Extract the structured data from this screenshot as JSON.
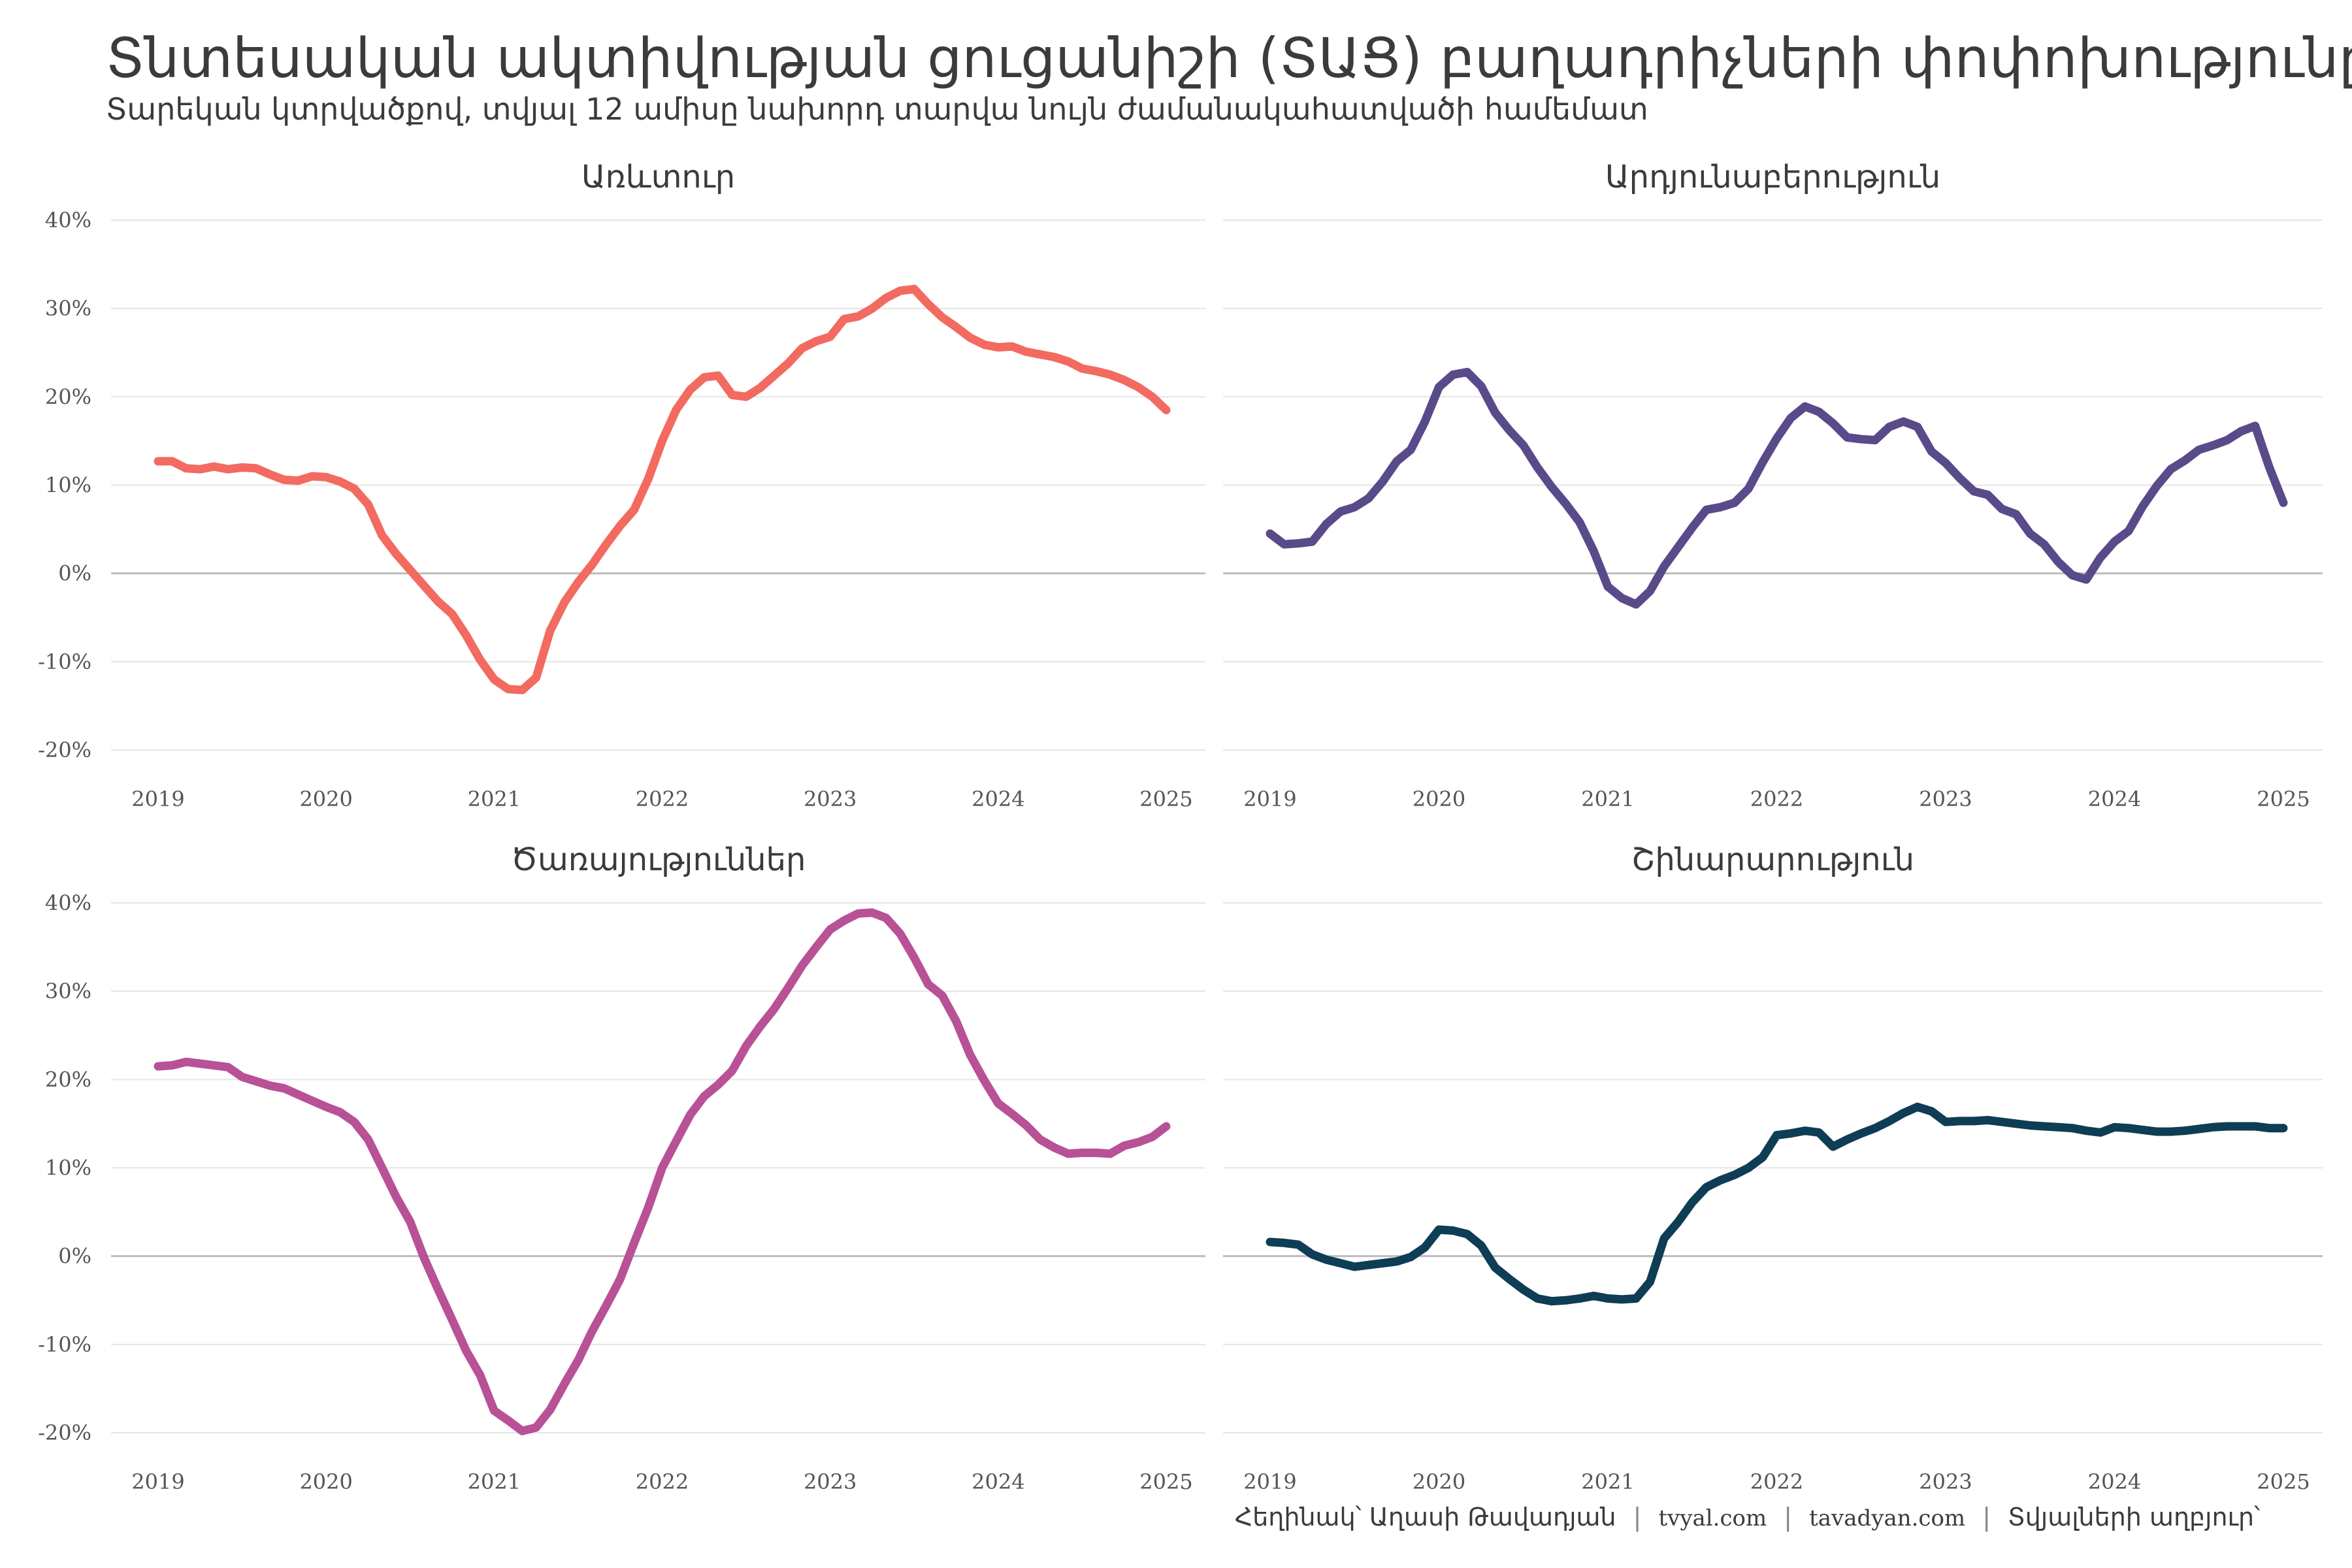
{
  "title": "Տնտեսական ակտիվության ցուցանիշի (ՏԱՑ) բաղադրիչների փոփոխությունը",
  "subtitle": "Տարեկան կտրվածքով, տվյալ 12 ամիսը նախորդ տարվա նույն ժամանակահատվածի համեմատ",
  "caption": {
    "author": "Հեղինակ՝ Աղասի Թավադյան",
    "site1": "tvyal.com",
    "site2": "tavadyan.com",
    "source": "Տվյալների աղբյուր՝"
  },
  "chart_data": [
    {
      "type": "line",
      "title": "Առևտուր",
      "color": "#f26a60",
      "ylim": [
        -20,
        40
      ],
      "yticks": [
        -20,
        -10,
        0,
        10,
        20,
        30,
        40
      ],
      "ytick_labels": [
        "-20%",
        "-10%",
        "0%",
        "10%",
        "20%",
        "30%",
        "40%"
      ],
      "xlim": [
        2019,
        2025
      ],
      "xticks": [
        2019,
        2020,
        2021,
        2022,
        2023,
        2024,
        2025
      ],
      "xtick_labels": [
        "2019",
        "2020",
        "2021",
        "2022",
        "2023",
        "2024",
        "2025"
      ],
      "x": [
        2019.0,
        2019.083,
        2019.167,
        2019.25,
        2019.333,
        2019.417,
        2019.5,
        2019.583,
        2019.667,
        2019.75,
        2019.833,
        2019.917,
        2020.0,
        2020.083,
        2020.167,
        2020.25,
        2020.333,
        2020.417,
        2020.5,
        2020.583,
        2020.667,
        2020.75,
        2020.833,
        2020.917,
        2021.0,
        2021.083,
        2021.167,
        2021.25,
        2021.333,
        2021.417,
        2021.5,
        2021.583,
        2021.667,
        2021.75,
        2021.833,
        2021.917,
        2022.0,
        2022.083,
        2022.167,
        2022.25,
        2022.333,
        2022.417,
        2022.5,
        2022.583,
        2022.667,
        2022.75,
        2022.833,
        2022.917,
        2023.0,
        2023.083,
        2023.167,
        2023.25,
        2023.333,
        2023.417,
        2023.5,
        2023.583,
        2023.667,
        2023.75,
        2023.833,
        2023.917,
        2024.0,
        2024.083,
        2024.167,
        2024.25,
        2024.333,
        2024.417,
        2024.5,
        2024.583,
        2024.667,
        2024.75,
        2024.833,
        2024.917,
        2025.0
      ],
      "y": [
        12.7,
        12.7,
        11.9,
        11.8,
        12.1,
        11.8,
        12.0,
        11.9,
        11.2,
        10.6,
        10.5,
        11.0,
        10.9,
        10.4,
        9.6,
        7.8,
        4.3,
        2.2,
        0.4,
        -1.4,
        -3.2,
        -4.6,
        -7.0,
        -9.8,
        -12.0,
        -13.1,
        -13.2,
        -11.8,
        -6.5,
        -3.3,
        -1.0,
        1.0,
        3.3,
        5.4,
        7.2,
        10.7,
        15.0,
        18.5,
        20.8,
        22.2,
        22.4,
        20.2,
        20.0,
        21.0,
        22.4,
        23.8,
        25.5,
        26.3,
        26.8,
        28.8,
        29.1,
        30.0,
        31.2,
        32.0,
        32.2,
        30.5,
        29.0,
        27.9,
        26.7,
        25.9,
        25.6,
        25.7,
        25.1,
        24.8,
        24.5,
        24.0,
        23.2,
        22.9,
        22.5,
        21.9,
        21.1,
        20.0,
        18.5
      ]
    },
    {
      "type": "line",
      "title": "Արդյունաբերություն",
      "color": "#594a8a",
      "ylim": [
        -20,
        40
      ],
      "xlim": [
        2019,
        2025
      ],
      "xticks": [
        2019,
        2020,
        2021,
        2022,
        2023,
        2024,
        2025
      ],
      "xtick_labels": [
        "2019",
        "2020",
        "2021",
        "2022",
        "2023",
        "2024",
        "2025"
      ],
      "x": [
        2019.0,
        2019.083,
        2019.167,
        2019.25,
        2019.333,
        2019.417,
        2019.5,
        2019.583,
        2019.667,
        2019.75,
        2019.833,
        2019.917,
        2020.0,
        2020.083,
        2020.167,
        2020.25,
        2020.333,
        2020.417,
        2020.5,
        2020.583,
        2020.667,
        2020.75,
        2020.833,
        2020.917,
        2021.0,
        2021.083,
        2021.167,
        2021.25,
        2021.333,
        2021.417,
        2021.5,
        2021.583,
        2021.667,
        2021.75,
        2021.833,
        2021.917,
        2022.0,
        2022.083,
        2022.167,
        2022.25,
        2022.333,
        2022.417,
        2022.5,
        2022.583,
        2022.667,
        2022.75,
        2022.833,
        2022.917,
        2023.0,
        2023.083,
        2023.167,
        2023.25,
        2023.333,
        2023.417,
        2023.5,
        2023.583,
        2023.667,
        2023.75,
        2023.833,
        2023.917,
        2024.0,
        2024.083,
        2024.167,
        2024.25,
        2024.333,
        2024.417,
        2024.5,
        2024.583,
        2024.667,
        2024.75,
        2024.833,
        2024.917,
        2025.0
      ],
      "y": [
        4.5,
        3.3,
        3.4,
        3.6,
        5.6,
        7.0,
        7.5,
        8.5,
        10.4,
        12.7,
        14.0,
        17.2,
        21.1,
        22.5,
        22.8,
        21.2,
        18.2,
        16.2,
        14.5,
        12.0,
        9.8,
        7.9,
        5.8,
        2.5,
        -1.5,
        -2.8,
        -3.5,
        -2.0,
        0.8,
        3.0,
        5.2,
        7.2,
        7.5,
        8.0,
        9.6,
        12.6,
        15.3,
        17.6,
        18.9,
        18.3,
        17.0,
        15.4,
        15.2,
        15.1,
        16.6,
        17.2,
        16.6,
        13.8,
        12.5,
        10.8,
        9.3,
        8.9,
        7.3,
        6.7,
        4.5,
        3.3,
        1.3,
        -0.2,
        -0.7,
        1.8,
        3.6,
        4.8,
        7.6,
        9.9,
        11.8,
        12.8,
        14.0,
        14.5,
        15.1,
        16.1,
        16.7,
        12.0,
        8.0
      ]
    },
    {
      "type": "line",
      "title": "Ծառայություններ",
      "color": "#b85196",
      "ylim": [
        -20,
        40
      ],
      "yticks": [
        -20,
        -10,
        0,
        10,
        20,
        30,
        40
      ],
      "ytick_labels": [
        "-20%",
        "-10%",
        "0%",
        "10%",
        "20%",
        "30%",
        "40%"
      ],
      "xlim": [
        2019,
        2025
      ],
      "xticks": [
        2019,
        2020,
        2021,
        2022,
        2023,
        2024,
        2025
      ],
      "xtick_labels": [
        "2019",
        "2020",
        "2021",
        "2022",
        "2023",
        "2024",
        "2025"
      ],
      "x": [
        2019.0,
        2019.083,
        2019.167,
        2019.25,
        2019.333,
        2019.417,
        2019.5,
        2019.583,
        2019.667,
        2019.75,
        2019.833,
        2019.917,
        2020.0,
        2020.083,
        2020.167,
        2020.25,
        2020.333,
        2020.417,
        2020.5,
        2020.583,
        2020.667,
        2020.75,
        2020.833,
        2020.917,
        2021.0,
        2021.083,
        2021.167,
        2021.25,
        2021.333,
        2021.417,
        2021.5,
        2021.583,
        2021.667,
        2021.75,
        2021.833,
        2021.917,
        2022.0,
        2022.083,
        2022.167,
        2022.25,
        2022.333,
        2022.417,
        2022.5,
        2022.583,
        2022.667,
        2022.75,
        2022.833,
        2022.917,
        2023.0,
        2023.083,
        2023.167,
        2023.25,
        2023.333,
        2023.417,
        2023.5,
        2023.583,
        2023.667,
        2023.75,
        2023.833,
        2023.917,
        2024.0,
        2024.083,
        2024.167,
        2024.25,
        2024.333,
        2024.417,
        2024.5,
        2024.583,
        2024.667,
        2024.75,
        2024.833,
        2024.917,
        2025.0
      ],
      "y": [
        21.5,
        21.6,
        22.0,
        21.8,
        21.6,
        21.4,
        20.3,
        19.8,
        19.3,
        19.0,
        18.3,
        17.6,
        16.9,
        16.3,
        15.2,
        13.2,
        10.0,
        6.7,
        3.9,
        -0.2,
        -3.8,
        -7.2,
        -10.7,
        -13.5,
        -17.5,
        -18.6,
        -19.8,
        -19.4,
        -17.4,
        -14.5,
        -11.8,
        -8.5,
        -5.6,
        -2.6,
        1.5,
        5.5,
        10.0,
        13.0,
        16.0,
        18.1,
        19.4,
        21.0,
        23.8,
        26.0,
        28.0,
        30.4,
        32.9,
        35.0,
        37.0,
        38.0,
        38.8,
        38.9,
        38.3,
        36.5,
        33.8,
        30.8,
        29.5,
        26.6,
        22.8,
        19.9,
        17.3,
        16.1,
        14.8,
        13.2,
        12.3,
        11.6,
        11.7,
        11.7,
        11.6,
        12.5,
        12.9,
        13.5,
        14.7
      ]
    },
    {
      "type": "line",
      "title": "Շինարարություն",
      "color": "#0e3d55",
      "ylim": [
        -20,
        40
      ],
      "xlim": [
        2019,
        2025
      ],
      "xticks": [
        2019,
        2020,
        2021,
        2022,
        2023,
        2024,
        2025
      ],
      "xtick_labels": [
        "2019",
        "2020",
        "2021",
        "2022",
        "2023",
        "2024",
        "2025"
      ],
      "x": [
        2019.0,
        2019.083,
        2019.167,
        2019.25,
        2019.333,
        2019.417,
        2019.5,
        2019.583,
        2019.667,
        2019.75,
        2019.833,
        2019.917,
        2020.0,
        2020.083,
        2020.167,
        2020.25,
        2020.333,
        2020.417,
        2020.5,
        2020.583,
        2020.667,
        2020.75,
        2020.833,
        2020.917,
        2021.0,
        2021.083,
        2021.167,
        2021.25,
        2021.333,
        2021.417,
        2021.5,
        2021.583,
        2021.667,
        2021.75,
        2021.833,
        2021.917,
        2022.0,
        2022.083,
        2022.167,
        2022.25,
        2022.333,
        2022.417,
        2022.5,
        2022.583,
        2022.667,
        2022.75,
        2022.833,
        2022.917,
        2023.0,
        2023.083,
        2023.167,
        2023.25,
        2023.333,
        2023.417,
        2023.5,
        2023.583,
        2023.667,
        2023.75,
        2023.833,
        2023.917,
        2024.0,
        2024.083,
        2024.167,
        2024.25,
        2024.333,
        2024.417,
        2024.5,
        2024.583,
        2024.667,
        2024.75,
        2024.833,
        2024.917,
        2025.0
      ],
      "y": [
        1.6,
        1.5,
        1.3,
        0.2,
        -0.4,
        -0.8,
        -1.2,
        -1.0,
        -0.8,
        -0.6,
        -0.1,
        1.0,
        3.0,
        2.9,
        2.5,
        1.2,
        -1.3,
        -2.6,
        -3.8,
        -4.8,
        -5.1,
        -5.0,
        -4.8,
        -4.5,
        -4.8,
        -4.9,
        -4.8,
        -2.9,
        2.0,
        3.9,
        6.1,
        7.8,
        8.6,
        9.2,
        10.0,
        11.2,
        13.7,
        13.9,
        14.2,
        14.0,
        12.4,
        13.2,
        13.9,
        14.5,
        15.3,
        16.2,
        16.9,
        16.4,
        15.2,
        15.3,
        15.3,
        15.4,
        15.2,
        15.0,
        14.8,
        14.7,
        14.6,
        14.5,
        14.2,
        14.0,
        14.6,
        14.5,
        14.3,
        14.1,
        14.1,
        14.2,
        14.4,
        14.6,
        14.7,
        14.7,
        14.7,
        14.5,
        14.5
      ]
    }
  ]
}
